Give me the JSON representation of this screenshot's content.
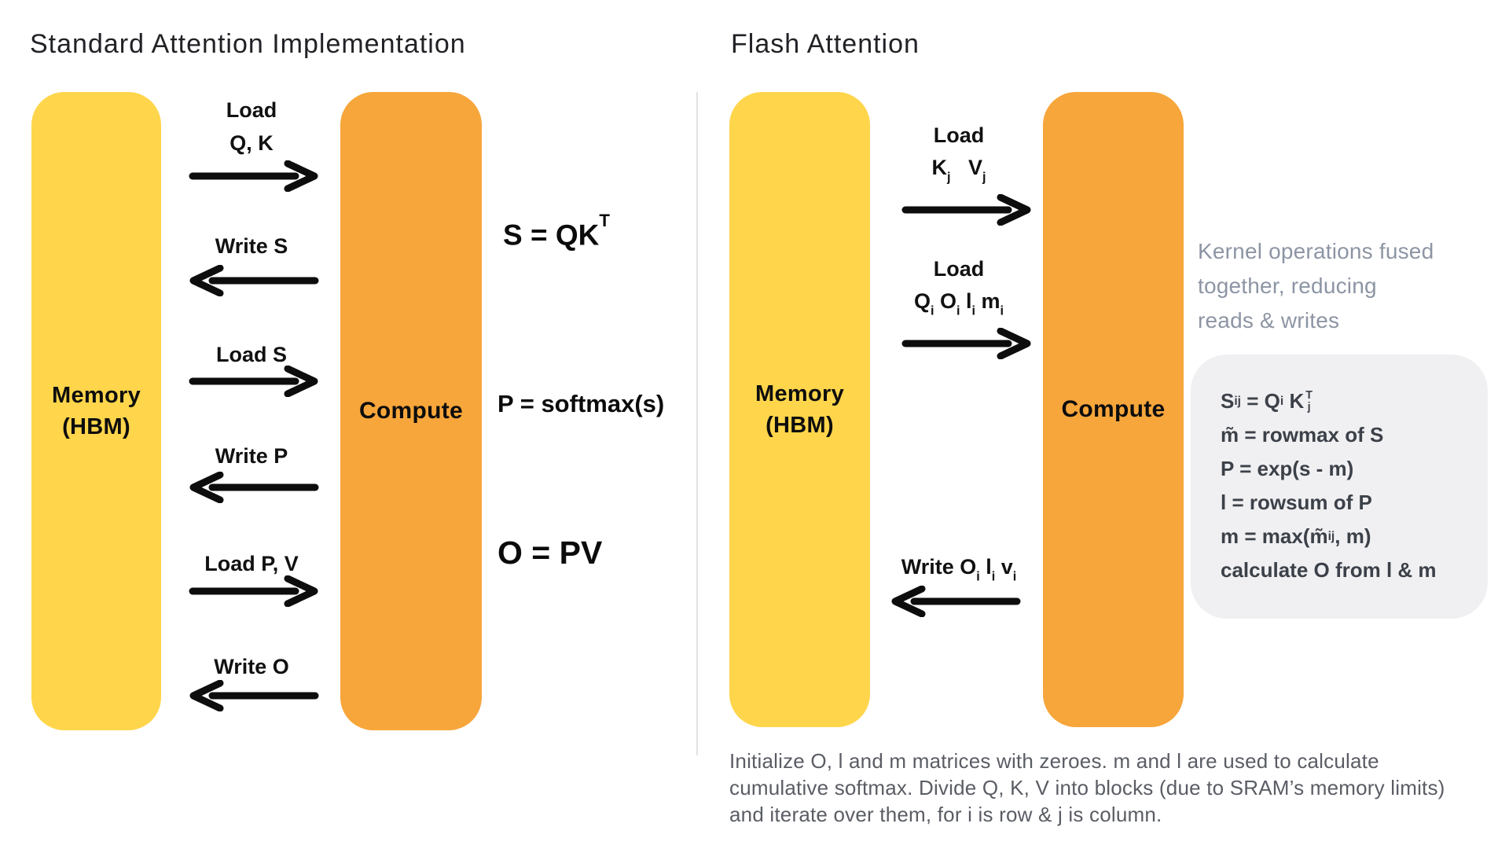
{
  "colors": {
    "memory_yellow": "#FFD54B",
    "compute_orange": "#F7A63B",
    "note_gray": "#8D95A4",
    "card_bg": "#F0F0F2",
    "card_text": "#3C4149",
    "footnote_text": "#5A5D64",
    "divider": "#E2E2E5",
    "arrow_black": "#0d0d0d"
  },
  "standard": {
    "title": "Standard Attention Implementation",
    "memory_label": "Memory\n(HBM)",
    "compute_label": "Compute",
    "flows": [
      {
        "label": "Load\nQ, K",
        "direction": "right"
      },
      {
        "label": "Write S",
        "direction": "left"
      },
      {
        "label": "Load S",
        "direction": "right"
      },
      {
        "label": "Write P",
        "direction": "left"
      },
      {
        "label": "Load P, V",
        "direction": "right"
      },
      {
        "label": "Write O",
        "direction": "left"
      }
    ],
    "formulas": {
      "s": [
        {
          "t": "S = QK"
        },
        {
          "t": "T",
          "s": "sup-high"
        }
      ],
      "p": [
        {
          "t": "P = softmax(s)"
        }
      ],
      "o": [
        {
          "t": "O = PV"
        }
      ]
    }
  },
  "flash": {
    "title": "Flash Attention",
    "memory_label": "Memory\n(HBM)",
    "compute_label": "Compute",
    "flows": [
      {
        "top_label": "Load",
        "segs": [
          {
            "t": "K"
          },
          {
            "t": "j",
            "s": "sub"
          },
          {
            "t": "   V"
          },
          {
            "t": "j",
            "s": "sub"
          }
        ],
        "direction": "right"
      },
      {
        "top_label": "Load",
        "segs": [
          {
            "t": "Q"
          },
          {
            "t": "i",
            "s": "sub"
          },
          {
            "t": " O"
          },
          {
            "t": "i",
            "s": "sub"
          },
          {
            "t": " l"
          },
          {
            "t": "i",
            "s": "sub"
          },
          {
            "t": " m"
          },
          {
            "t": "i",
            "s": "sub"
          }
        ],
        "direction": "right"
      },
      {
        "segs": [
          {
            "t": "Write O"
          },
          {
            "t": "i",
            "s": "sub"
          },
          {
            "t": " l"
          },
          {
            "t": "i",
            "s": "sub"
          },
          {
            "t": " v"
          },
          {
            "t": "i",
            "s": "sub"
          }
        ],
        "direction": "left"
      }
    ],
    "kernel_note": "Kernel operations fused\ntogether, reducing\nreads & writes",
    "card_lines": [
      [
        {
          "t": "S"
        },
        {
          "t": "ij",
          "s": "sub"
        },
        {
          "t": " = Q"
        },
        {
          "t": "i",
          "s": "sub"
        },
        {
          "t": " K"
        },
        {
          "s": "stack",
          "top": "T",
          "bot": "j"
        }
      ],
      [
        {
          "t": "m̃ = rowmax of S"
        }
      ],
      [
        {
          "t": "P = exp(s - m)"
        }
      ],
      [
        {
          "t": "l = rowsum of P"
        }
      ],
      [
        {
          "t": "m = max(m̃"
        },
        {
          "t": "ij",
          "s": "sub"
        },
        {
          "t": ", m)"
        }
      ],
      [
        {
          "t": "calculate O from l & m"
        }
      ]
    ],
    "footnote": "Initialize O, l and m matrices with zeroes. m and l are used to calculate\ncumulative softmax. Divide Q, K, V into blocks (due to SRAM’s memory limits)\nand iterate over them, for i is row & j is column."
  }
}
